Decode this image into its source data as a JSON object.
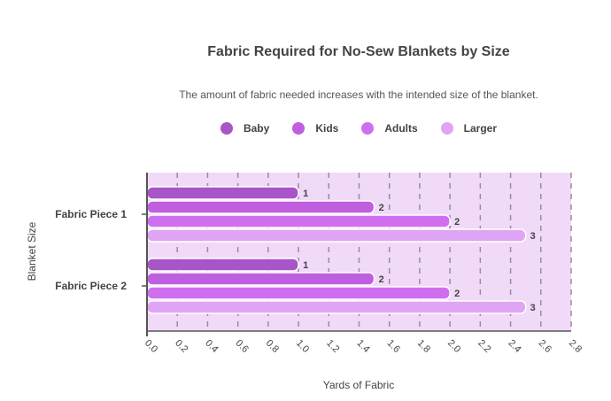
{
  "chart_data": {
    "type": "bar",
    "orientation": "horizontal",
    "title": "Fabric Required for No-Sew Blankets by Size",
    "subtitle": "The amount of fabric needed increases with the intended size of the blanket.",
    "xlabel": "Yards of Fabric",
    "ylabel": "Blanket Size",
    "categories": [
      "Fabric Piece 1",
      "Fabric Piece 2"
    ],
    "series": [
      {
        "name": "Baby",
        "values": [
          1,
          1
        ],
        "display_values": [
          1,
          1
        ],
        "color": "#a855c8"
      },
      {
        "name": "Kids",
        "values": [
          1.5,
          1.5
        ],
        "display_values": [
          2,
          2
        ],
        "color": "#c05ee0"
      },
      {
        "name": "Adults",
        "values": [
          2.0,
          2.0
        ],
        "display_values": [
          2,
          2
        ],
        "color": "#cf6ff0"
      },
      {
        "name": "Larger",
        "values": [
          2.5,
          2.5
        ],
        "display_values": [
          3,
          3
        ],
        "color": "#e0a4f5"
      }
    ],
    "xlim": [
      0,
      2.8
    ],
    "xticks": [
      "0.0",
      "0.2",
      "0.4",
      "0.6",
      "0.8",
      "1.0",
      "1.2",
      "1.4",
      "1.6",
      "1.8",
      "2.0",
      "2.2",
      "2.4",
      "2.6",
      "2.8"
    ],
    "grid": true,
    "legend_position": "top",
    "plot_background": "#f0daf8"
  }
}
